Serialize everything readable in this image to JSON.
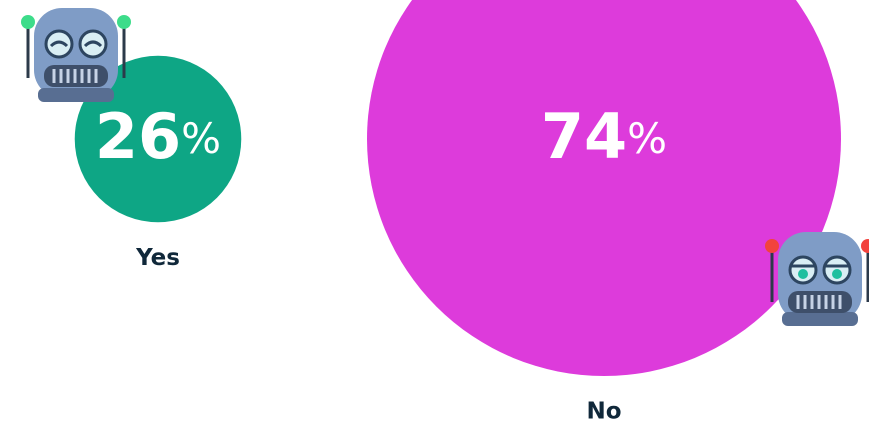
{
  "chart_data": {
    "type": "bubble",
    "categories": [
      "Yes",
      "No"
    ],
    "values": [
      26,
      74
    ],
    "value_labels": [
      "26%",
      "74%"
    ],
    "colors": [
      "#0ea685",
      "#dd3bdb"
    ]
  }
}
